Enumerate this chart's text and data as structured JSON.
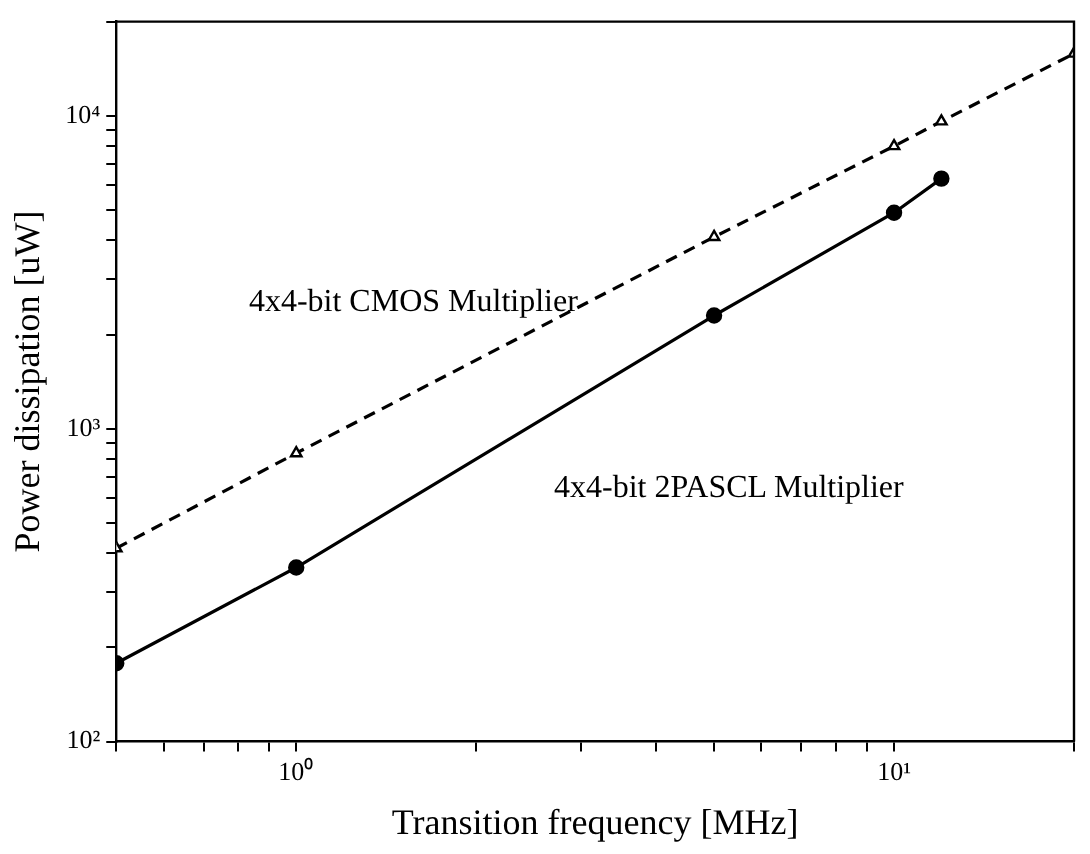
{
  "chart_data": {
    "type": "line",
    "xlabel": "Transition frequency [MHz]",
    "ylabel": "Power dissipation [uW]",
    "log": "xy",
    "grid": false,
    "legend": false,
    "xlim": [
      0.5,
      20
    ],
    "xticks": [
      {
        "value": 0.5,
        "label": null
      },
      {
        "value": 0.6,
        "label": null
      },
      {
        "value": 0.7,
        "label": null
      },
      {
        "value": 0.8,
        "label": null
      },
      {
        "value": 0.9,
        "label": null
      },
      {
        "value": 1,
        "label": "10⁰"
      },
      {
        "value": 2,
        "label": null
      },
      {
        "value": 3,
        "label": null
      },
      {
        "value": 4,
        "label": null
      },
      {
        "value": 5,
        "label": null
      },
      {
        "value": 6,
        "label": null
      },
      {
        "value": 7,
        "label": null
      },
      {
        "value": 8,
        "label": null
      },
      {
        "value": 9,
        "label": null
      },
      {
        "value": 10,
        "label": "10¹"
      },
      {
        "value": 20,
        "label": null
      }
    ],
    "ylim": [
      100,
      20000
    ],
    "yticks": [
      {
        "value": 100,
        "label": "10²"
      },
      {
        "value": 200,
        "label": null
      },
      {
        "value": 300,
        "label": null
      },
      {
        "value": 400,
        "label": null
      },
      {
        "value": 500,
        "label": null
      },
      {
        "value": 600,
        "label": null
      },
      {
        "value": 700,
        "label": null
      },
      {
        "value": 800,
        "label": null
      },
      {
        "value": 900,
        "label": null
      },
      {
        "value": 1000,
        "label": "10³"
      },
      {
        "value": 2000,
        "label": null
      },
      {
        "value": 3000,
        "label": null
      },
      {
        "value": 4000,
        "label": null
      },
      {
        "value": 5000,
        "label": null
      },
      {
        "value": 6000,
        "label": null
      },
      {
        "value": 7000,
        "label": null
      },
      {
        "value": 8000,
        "label": null
      },
      {
        "value": 9000,
        "label": null
      },
      {
        "value": 10000,
        "label": "10⁴"
      },
      {
        "value": 20000,
        "label": null
      }
    ],
    "series": [
      {
        "name": "4x4-bit CMOS Multiplier",
        "color": "#000000",
        "marker": "triangle",
        "line_style": "dashed",
        "x": [
          0.5,
          1,
          5,
          10,
          12,
          20
        ],
        "values": [
          415,
          835,
          4100,
          8000,
          9600,
          15800
        ]
      },
      {
        "name": "4x4-bit 2PASCL Multiplier",
        "color": "#000000",
        "marker": "circle",
        "line_style": "solid",
        "x": [
          0.5,
          1,
          5,
          10,
          12
        ],
        "values": [
          178,
          360,
          2300,
          4900,
          6300
        ]
      }
    ]
  }
}
